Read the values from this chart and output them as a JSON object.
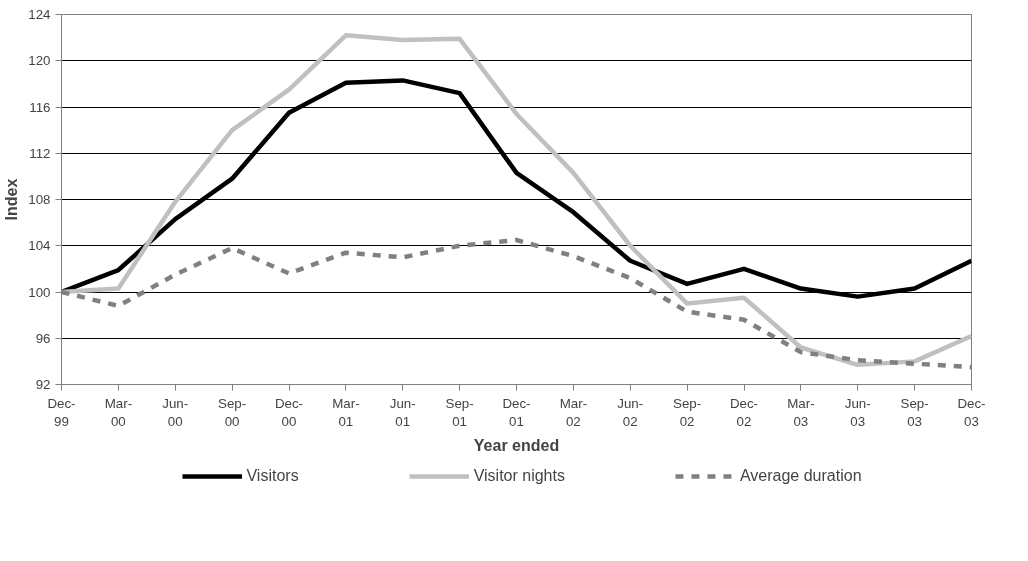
{
  "chart_data": {
    "type": "line",
    "xlabel": "Year ended",
    "ylabel": "Index",
    "categories": [
      "Dec-99",
      "Mar-00",
      "Jun-00",
      "Sep-00",
      "Dec-00",
      "Mar-01",
      "Jun-01",
      "Sep-01",
      "Dec-01",
      "Mar-02",
      "Jun-02",
      "Sep-02",
      "Dec-02",
      "Mar-03",
      "Jun-03",
      "Sep-03",
      "Dec-03"
    ],
    "series": [
      {
        "name": "Visitors",
        "color": "#000000",
        "line_style": "solid",
        "values": [
          100,
          101.9,
          106.3,
          109.8,
          115.5,
          118.1,
          118.3,
          117.2,
          110.3,
          106.9,
          102.7,
          100.7,
          102.0,
          100.3,
          99.6,
          100.3,
          102.7
        ]
      },
      {
        "name": "Visitor nights",
        "color": "#c0c0c0",
        "line_style": "solid",
        "values": [
          100,
          100.3,
          107.8,
          114.0,
          117.5,
          122.2,
          121.8,
          121.9,
          115.4,
          110.3,
          104.0,
          99.0,
          99.5,
          95.2,
          93.7,
          94.0,
          96.2
        ]
      },
      {
        "name": "Average duration",
        "color": "#808080",
        "line_style": "dashed",
        "values": [
          100,
          98.8,
          101.5,
          103.8,
          101.6,
          103.4,
          103.0,
          104.0,
          104.5,
          103.1,
          101.2,
          98.3,
          97.6,
          94.8,
          94.1,
          93.8,
          93.5
        ]
      }
    ],
    "ylim": [
      92,
      124
    ],
    "yticks": [
      92,
      96,
      100,
      104,
      108,
      112,
      116,
      120,
      124
    ],
    "grid": "y",
    "legend": "bottom"
  }
}
